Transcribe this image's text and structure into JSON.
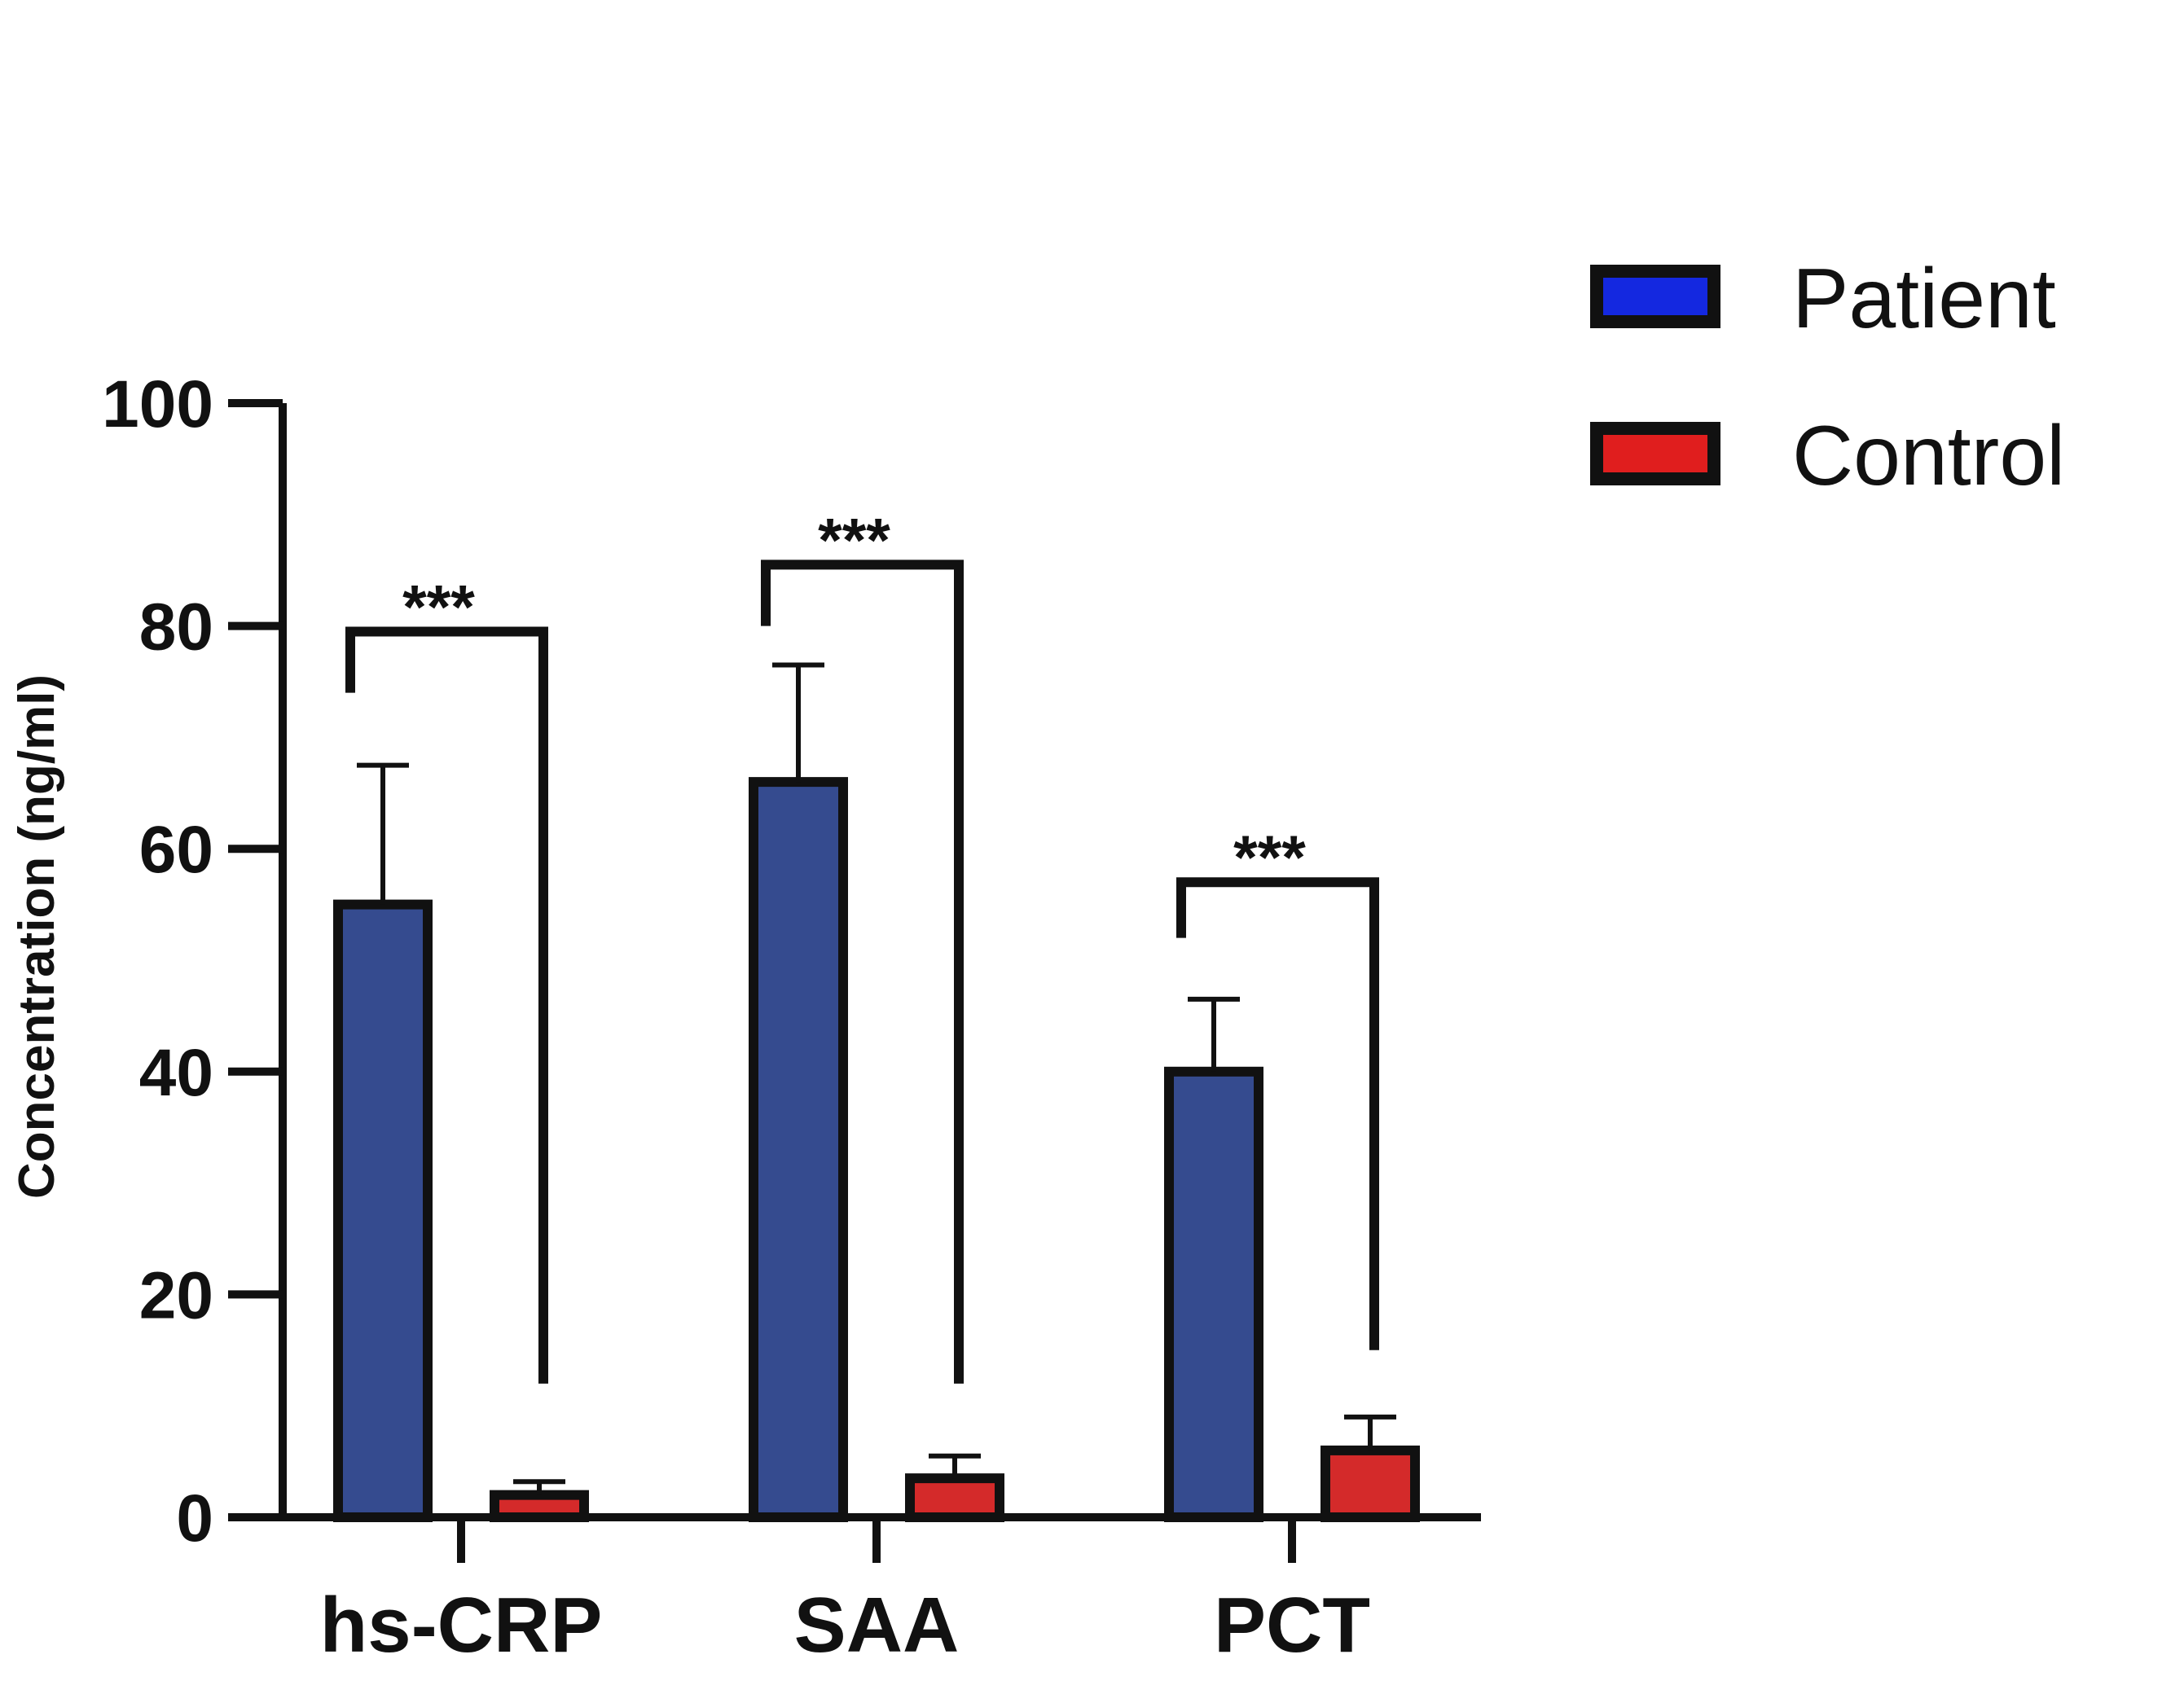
{
  "chart_data": {
    "type": "bar",
    "title": "",
    "xlabel": "",
    "ylabel": "Concentration (ng/ml)",
    "ylim": [
      0,
      100
    ],
    "yticks": [
      0,
      20,
      40,
      60,
      80,
      100
    ],
    "grid": false,
    "legend_position": "top-right",
    "categories": [
      "hs-CRP",
      "SAA",
      "PCT"
    ],
    "series": [
      {
        "name": "Patient",
        "color": "#354b8f",
        "legend_color": "#1428e0",
        "values": [
          55,
          66,
          40
        ],
        "error_upper": [
          67.5,
          76.5,
          46.5
        ]
      },
      {
        "name": "Control",
        "color": "#d42a2a",
        "legend_color": "#e01e1e",
        "values": [
          2,
          3.5,
          6
        ],
        "error_upper": [
          3.2,
          5.5,
          9
        ]
      }
    ],
    "significance": [
      {
        "category": "hs-CRP",
        "label": "***",
        "left_y": 74,
        "right_y": 12,
        "top_y": 79.5
      },
      {
        "category": "SAA",
        "label": "***",
        "left_y": 80,
        "right_y": 12,
        "top_y": 85.5
      },
      {
        "category": "PCT",
        "label": "***",
        "left_y": 52,
        "right_y": 15,
        "top_y": 57
      }
    ]
  }
}
